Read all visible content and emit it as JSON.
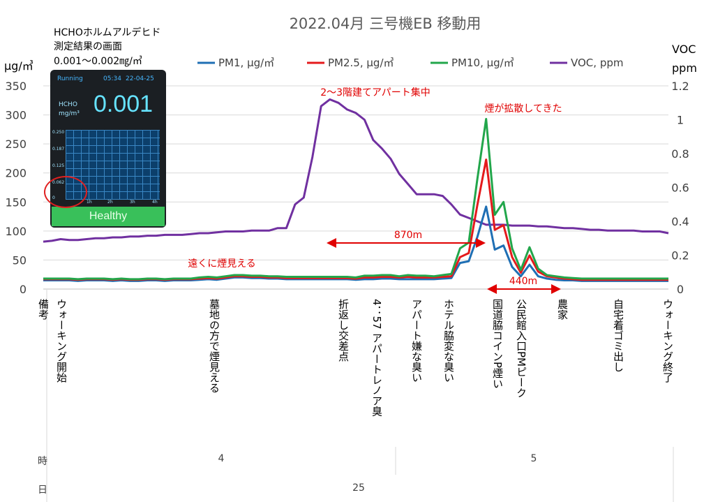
{
  "chart_data": {
    "type": "line",
    "title": "2022.04月 三号機EB 移動用",
    "ylabel_left": "μg/㎥",
    "ylabel_right_1": "VOC",
    "ylabel_right_2": "ppm",
    "ylim_left": [
      0,
      350
    ],
    "ylim_right": [
      0,
      1.2
    ],
    "left_ticks": [
      "0",
      "50",
      "100",
      "150",
      "200",
      "250",
      "300",
      "350"
    ],
    "right_ticks": [
      "0",
      "0.2",
      "0.4",
      "0.6",
      "0.8",
      "1",
      "1.2"
    ],
    "grid": true,
    "legend_position": "top",
    "series": [
      {
        "name": "PM1, μg/㎥",
        "color": "#1f6fb4",
        "axis": "left",
        "values": [
          15,
          15,
          15,
          15,
          14,
          15,
          15,
          15,
          14,
          15,
          14,
          14,
          15,
          15,
          14,
          15,
          15,
          15,
          16,
          17,
          16,
          18,
          20,
          20,
          19,
          19,
          18,
          18,
          17,
          17,
          17,
          17,
          17,
          17,
          17,
          17,
          16,
          17,
          17,
          18,
          18,
          17,
          17,
          17,
          17,
          17,
          18,
          19,
          45,
          48,
          90,
          142,
          68,
          75,
          38,
          22,
          42,
          22,
          18,
          16,
          15,
          15,
          14,
          14,
          14,
          14,
          14,
          14,
          14,
          14,
          14,
          14,
          14
        ]
      },
      {
        "name": "PM2.5, μg/㎥",
        "color": "#e41a1c",
        "axis": "left",
        "values": [
          17,
          17,
          17,
          17,
          16,
          17,
          17,
          17,
          16,
          17,
          16,
          16,
          17,
          17,
          16,
          17,
          17,
          17,
          18,
          19,
          18,
          20,
          22,
          22,
          21,
          21,
          20,
          20,
          19,
          19,
          19,
          19,
          19,
          19,
          19,
          19,
          18,
          20,
          20,
          21,
          21,
          20,
          21,
          20,
          20,
          20,
          21,
          22,
          55,
          62,
          145,
          223,
          102,
          110,
          55,
          28,
          58,
          30,
          22,
          20,
          18,
          17,
          16,
          16,
          16,
          16,
          16,
          16,
          16,
          16,
          16,
          16,
          16
        ]
      },
      {
        "name": "PM10, μg/㎥",
        "color": "#22a64b",
        "axis": "left",
        "values": [
          18,
          18,
          18,
          18,
          17,
          18,
          18,
          18,
          17,
          18,
          17,
          17,
          18,
          18,
          17,
          18,
          18,
          18,
          20,
          21,
          20,
          22,
          24,
          24,
          23,
          23,
          22,
          22,
          21,
          21,
          21,
          21,
          21,
          21,
          21,
          21,
          20,
          23,
          23,
          24,
          24,
          22,
          24,
          23,
          23,
          22,
          24,
          26,
          70,
          80,
          190,
          293,
          128,
          150,
          70,
          33,
          72,
          35,
          24,
          22,
          20,
          19,
          18,
          18,
          18,
          18,
          18,
          18,
          18,
          18,
          18,
          18,
          18
        ]
      },
      {
        "name": "VOC, ppm",
        "color": "#7030a0",
        "axis": "right",
        "values": [
          0.28,
          0.285,
          0.295,
          0.29,
          0.29,
          0.295,
          0.3,
          0.3,
          0.305,
          0.305,
          0.31,
          0.31,
          0.315,
          0.315,
          0.32,
          0.32,
          0.32,
          0.325,
          0.33,
          0.33,
          0.335,
          0.34,
          0.34,
          0.34,
          0.345,
          0.345,
          0.345,
          0.36,
          0.36,
          0.5,
          0.54,
          0.78,
          1.08,
          1.12,
          1.1,
          1.06,
          1.04,
          1.0,
          0.88,
          0.83,
          0.77,
          0.68,
          0.62,
          0.56,
          0.56,
          0.56,
          0.55,
          0.5,
          0.44,
          0.42,
          0.4,
          0.38,
          0.38,
          0.38,
          0.375,
          0.375,
          0.375,
          0.37,
          0.37,
          0.365,
          0.36,
          0.36,
          0.355,
          0.35,
          0.35,
          0.345,
          0.345,
          0.345,
          0.345,
          0.34,
          0.34,
          0.34,
          0.33
        ]
      }
    ],
    "annotations": [
      {
        "text": "2〜3階建てアパート集中"
      },
      {
        "text": "煙が拡散してきた"
      },
      {
        "text": "遠くに煙見える"
      },
      {
        "text": "870m"
      },
      {
        "text": "440m"
      }
    ],
    "row_headers": {
      "remark": "備考",
      "hour": "時",
      "day": "日"
    },
    "event_labels": [
      {
        "label": "ウォーキング開始"
      },
      {
        "label": "墓地の方で煙見える"
      },
      {
        "label": "折返し交差点"
      },
      {
        "label": "4：57 アパートレノア臭"
      },
      {
        "label": "アパート嫌な臭い"
      },
      {
        "label": "ホテル脇変な臭い"
      },
      {
        "label": "国道脇コインP煙い"
      },
      {
        "label": "公民館入口PMピーク"
      },
      {
        "label": "農家"
      },
      {
        "label": "自宅着ゴミ出し"
      },
      {
        "label": "ウォーキング終了"
      }
    ],
    "hour_labels": [
      "4",
      "5"
    ],
    "day_label": "25"
  },
  "inset": {
    "note_line1": "HCHOホルムアルデヒド",
    "note_line2": "測定結果の画面",
    "note_line3": "0.001〜0.002㎎/㎥",
    "status": "Running",
    "time": "05:34",
    "date": "22-04-25",
    "gas": "HCHO",
    "unit": "mg/m³",
    "reading": "0.001",
    "y_ticks": [
      "0.250",
      "0.187",
      "0.125",
      "0.062",
      "0"
    ],
    "x_ticks": [
      "1h",
      "2h",
      "3h",
      "4h"
    ],
    "health": "Healthy"
  }
}
